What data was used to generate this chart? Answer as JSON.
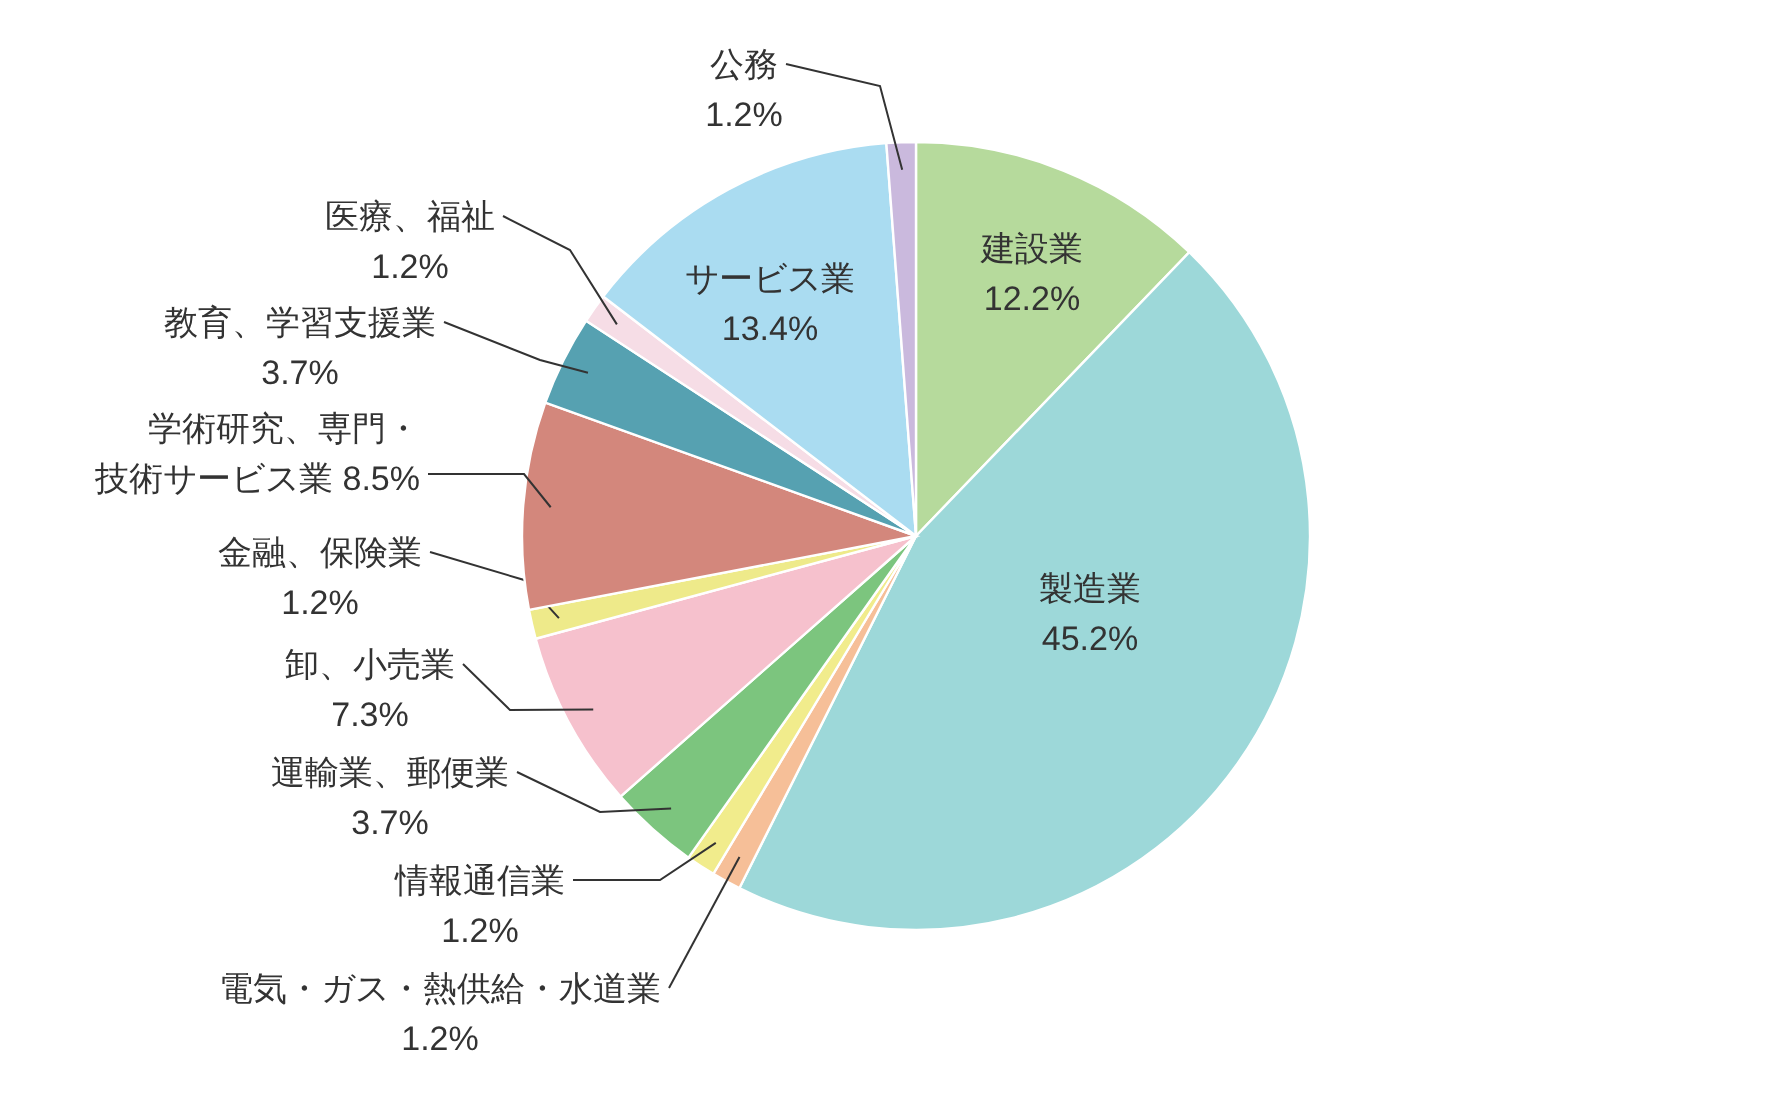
{
  "chart_data": {
    "type": "pie",
    "categories": [
      "建設業",
      "製造業",
      "電気・ガス・熱供給・水道業",
      "情報通信業",
      "運輸業、郵便業",
      "卸、小売業",
      "金融、保険業",
      "学術研究、専門・技術サービス業",
      "教育、学習支援業",
      "医療、福祉",
      "サービス業",
      "公務"
    ],
    "values": [
      12.2,
      45.2,
      1.2,
      1.2,
      3.7,
      7.3,
      1.2,
      8.5,
      3.7,
      1.2,
      13.4,
      1.2
    ],
    "colors": [
      "#b6da9c",
      "#9dd8d9",
      "#f6bf98",
      "#f1ec8c",
      "#7cc57e",
      "#f6c1cd",
      "#eeea8a",
      "#d3877c",
      "#56a1b1",
      "#f6dde6",
      "#aadcf1",
      "#cab9dd"
    ],
    "value_labels": [
      "12.2%",
      "45.2%",
      "1.2%",
      "1.2%",
      "3.7%",
      "7.3%",
      "1.2%",
      "8.5%",
      "3.7%",
      "1.2%",
      "13.4%",
      "1.2%"
    ]
  }
}
